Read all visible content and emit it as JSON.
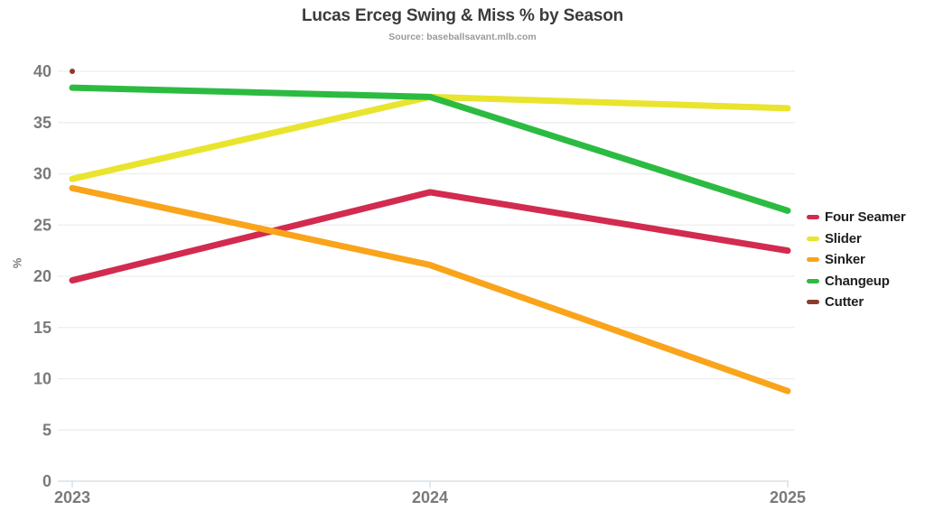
{
  "header": {
    "title": "Lucas Erceg Swing & Miss % by Season",
    "subtitle": "Source: baseballsavant.mlb.com"
  },
  "chart_data": {
    "type": "line",
    "title": "Lucas Erceg Swing & Miss % by Season",
    "subtitle": "Source: baseballsavant.mlb.com",
    "xlabel": "",
    "ylabel": "%",
    "categories": [
      "2023",
      "2024",
      "2025"
    ],
    "ylim": [
      0,
      40
    ],
    "yticks": [
      0,
      5,
      10,
      15,
      20,
      25,
      30,
      35,
      40
    ],
    "grid": true,
    "legend_position": "right",
    "series": [
      {
        "name": "Four Seamer",
        "color": "#d22b4f",
        "values": [
          19.6,
          28.2,
          22.5
        ]
      },
      {
        "name": "Slider",
        "color": "#e9e42e",
        "values": [
          29.5,
          37.5,
          36.4
        ]
      },
      {
        "name": "Sinker",
        "color": "#f9a41b",
        "values": [
          28.6,
          21.1,
          8.8
        ]
      },
      {
        "name": "Changeup",
        "color": "#2cbb41",
        "values": [
          38.4,
          37.5,
          26.4
        ]
      },
      {
        "name": "Cutter",
        "color": "#8c3b2b",
        "values": [
          40.0,
          null,
          null
        ]
      }
    ],
    "style": {
      "grid_color": "#ededed",
      "axis_color": "#d8e0e8",
      "tick_label_color": "#7a7a7a",
      "line_width": 7
    }
  }
}
